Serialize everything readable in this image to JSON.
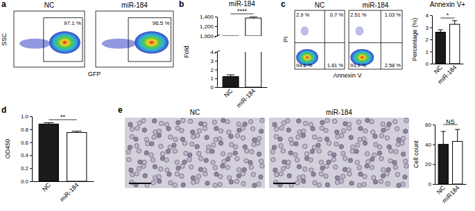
{
  "chart_data": [
    {
      "type": "gate",
      "panel": "a",
      "title": "NC",
      "x_label": "GFP",
      "y_label": "SSC",
      "tick_labels": false,
      "annotations": [
        "97.1 %"
      ]
    },
    {
      "type": "gate",
      "title": "miR-184",
      "tick_labels": false,
      "annotations": [
        "96.5 %"
      ]
    },
    {
      "type": "bar",
      "panel": "b",
      "title": "miR-184",
      "y_label": "Fold",
      "categories": [
        "NC",
        "miR-184"
      ],
      "values": [
        1.2,
        1370
      ],
      "errors": [
        0.2,
        25
      ],
      "colors": [
        "#1a1a1a",
        "#ffffff"
      ],
      "ylim": [
        0,
        1400
      ],
      "y_break": [
        4,
        1000
      ],
      "yticks": [
        0,
        1,
        2,
        3,
        4,
        {
          "value": 1000,
          "label": "1,000"
        },
        {
          "value": 1200,
          "label": "1,200"
        },
        {
          "value": 1400,
          "label": "1,400"
        }
      ],
      "annotations": [
        "****"
      ]
    },
    {
      "type": "quadrant",
      "panel": "c",
      "title": "NC",
      "x_label": "Annexin V",
      "y_label": "PI",
      "tick_labels": false,
      "annotations": [
        "2.9 %",
        "0.7 %",
        "94.6 %",
        "1.81 %"
      ]
    },
    {
      "type": "quadrant",
      "title": "miR-184",
      "tick_labels": false,
      "annotations": [
        "2.51 %",
        "1.03 %",
        "93.9 %",
        "2.58 %"
      ]
    },
    {
      "type": "bar",
      "title": "Annexin V+",
      "y_label": "Percentage (%)",
      "categories": [
        "NC",
        "miR-184"
      ],
      "values": [
        2.6,
        3.25
      ],
      "errors": [
        0.2,
        0.3
      ],
      "colors": [
        "#1a1a1a",
        "#ffffff"
      ],
      "ylim": [
        0,
        4
      ],
      "yticks": [
        0,
        1,
        2,
        3,
        4
      ],
      "annotations": [
        "*"
      ]
    },
    {
      "type": "bar",
      "panel": "d",
      "y_label": "OD450",
      "categories": [
        "NC",
        "miR-184"
      ],
      "values": [
        0.88,
        0.75
      ],
      "errors": [
        0.02,
        0.02
      ],
      "colors": [
        "#1a1a1a",
        "#ffffff"
      ],
      "ylim": [
        0,
        1.0
      ],
      "yticks": [
        {
          "value": 0,
          "label": "0.0"
        },
        0.2,
        0.4,
        0.6,
        0.8,
        {
          "value": 1,
          "label": "1.0"
        }
      ],
      "annotations": [
        "**"
      ]
    },
    {
      "type": "image",
      "panel": "e",
      "title": "NC"
    },
    {
      "type": "image",
      "title": "miR-184"
    },
    {
      "type": "bar",
      "y_label": "Cell count",
      "categories": [
        "NC",
        "miR184"
      ],
      "values": [
        40,
        43
      ],
      "errors": [
        13,
        12
      ],
      "colors": [
        "#1a1a1a",
        "#ffffff"
      ],
      "ylim": [
        0,
        60
      ],
      "yticks": [
        0,
        20,
        40,
        60
      ],
      "annotations": [
        "NS"
      ]
    }
  ]
}
